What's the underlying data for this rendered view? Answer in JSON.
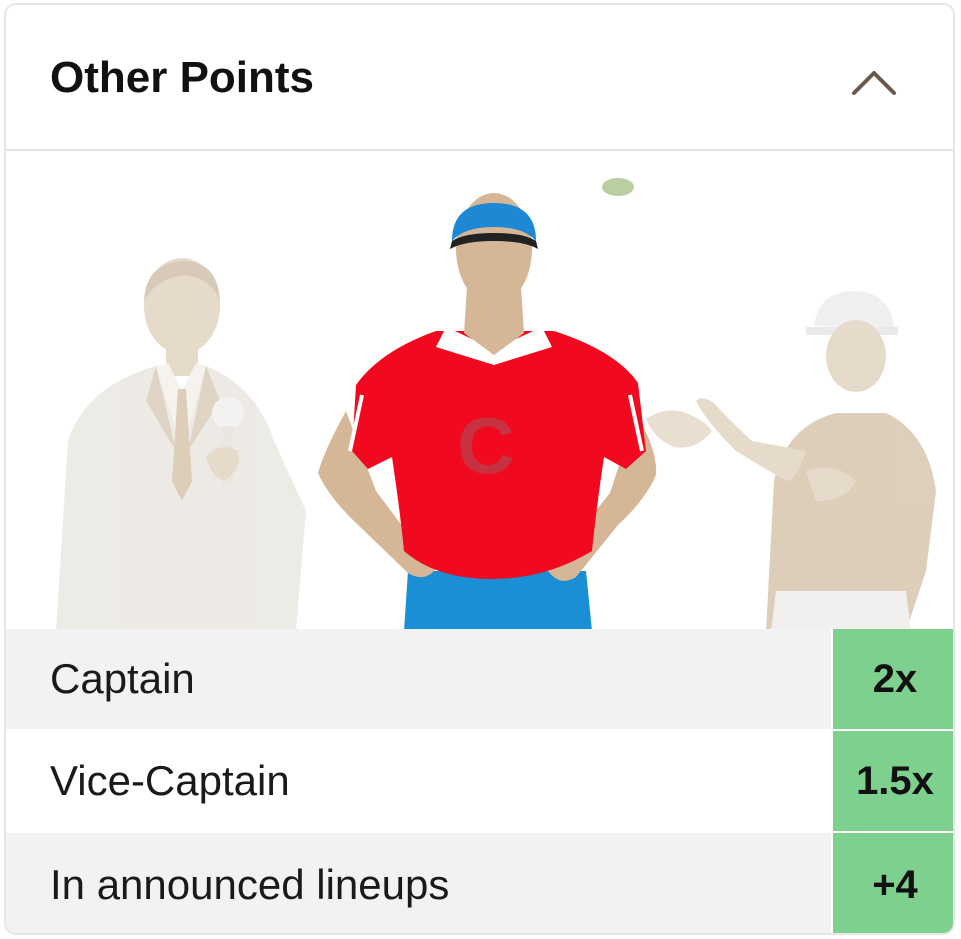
{
  "header": {
    "title": "Other Points",
    "toggle_icon": "chevron-up-icon"
  },
  "illustration": {
    "description_icon": "captain-illustration",
    "jersey_letter": "C"
  },
  "rows": [
    {
      "label": "Captain",
      "value": "2x"
    },
    {
      "label": "Vice-Captain",
      "value": "1.5x"
    },
    {
      "label": "In announced lineups",
      "value": "+4"
    }
  ],
  "colors": {
    "value_bg": "#7ed08f",
    "row_bg": "#f2f2f2",
    "jersey_red": "#f0091f",
    "shorts_blue": "#1a8fd6",
    "cap_blue": "#1e88d4"
  }
}
